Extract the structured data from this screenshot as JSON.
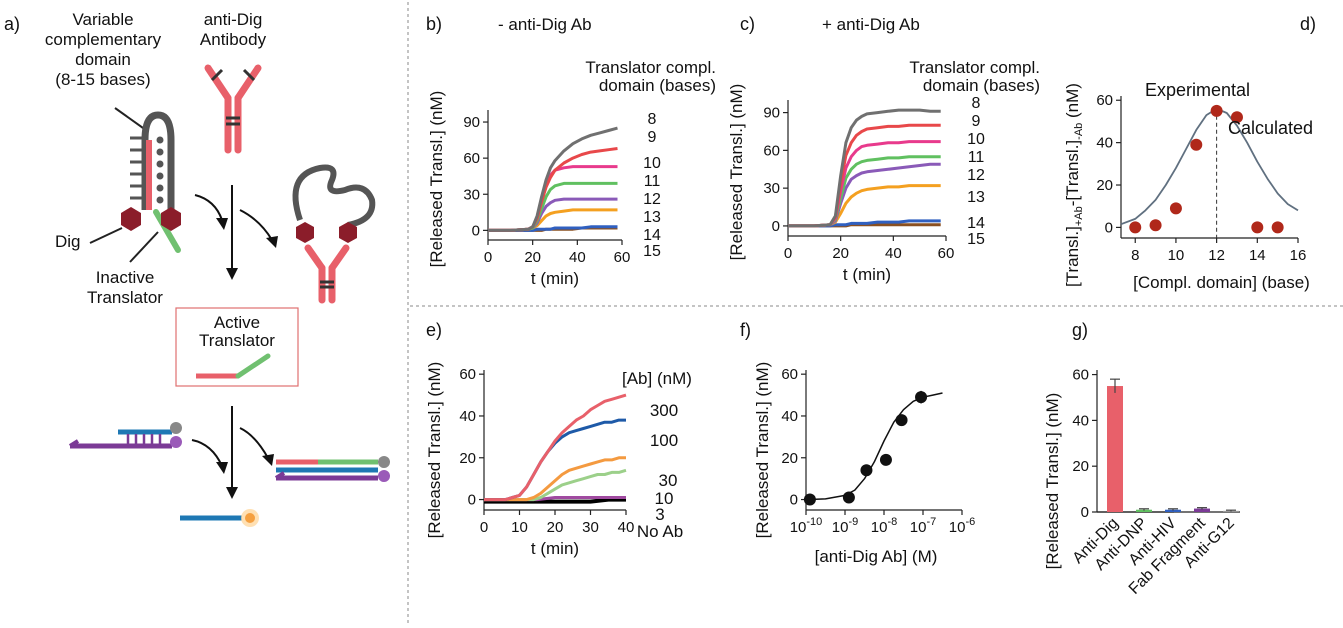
{
  "colors": {
    "axis": "#222222",
    "divider": "#888888",
    "red": "#e8606a",
    "green": "#70c070",
    "blue": "#1e78b4",
    "purple": "#7b3a96",
    "gray": "#555555",
    "maroon": "#a01c22",
    "calc": "#607080",
    "exp": "#b0281a"
  },
  "panel_a": {
    "letter": "a)",
    "variable_label": [
      "Variable",
      "complementary",
      "domain",
      "(8-15 bases)"
    ],
    "antibody_label": [
      "anti-Dig",
      "Antibody"
    ],
    "dig_label": "Dig",
    "inactive_label": [
      "Inactive",
      "Translator"
    ],
    "active_label": [
      "Active",
      "Translator"
    ]
  },
  "chart_data": [
    {
      "id": "b",
      "letter": "b)",
      "type": "line",
      "title": "- anti-Dig Ab",
      "legend_title": [
        "Translator compl.",
        "domain (bases)"
      ],
      "xlabel": "t (min)",
      "ylabel": "[Released Transl.] (nM)",
      "xlim": [
        0,
        60
      ],
      "ylim": [
        -8,
        100
      ],
      "xticks": [
        0,
        20,
        40,
        60
      ],
      "yticks": [
        0,
        30,
        60,
        90
      ],
      "series": [
        {
          "name": "8",
          "color": "#707070",
          "x": [
            0,
            10,
            18,
            20,
            22,
            24,
            26,
            28,
            30,
            34,
            38,
            42,
            46,
            50,
            54,
            58
          ],
          "y": [
            0,
            0,
            1,
            3,
            12,
            28,
            42,
            52,
            58,
            66,
            72,
            76,
            79,
            81,
            83,
            85
          ]
        },
        {
          "name": "9",
          "color": "#e8484a",
          "x": [
            0,
            10,
            18,
            20,
            22,
            24,
            26,
            28,
            30,
            34,
            38,
            42,
            46,
            50,
            54,
            58
          ],
          "y": [
            0,
            0,
            1,
            3,
            10,
            24,
            36,
            44,
            50,
            56,
            60,
            63,
            65,
            66,
            67,
            68
          ]
        },
        {
          "name": "10",
          "color": "#e83a8c",
          "x": [
            0,
            10,
            18,
            20,
            22,
            24,
            26,
            28,
            30,
            34,
            38,
            42,
            46,
            50,
            54,
            58
          ],
          "y": [
            0,
            0,
            1,
            3,
            10,
            24,
            38,
            46,
            50,
            52,
            53,
            53,
            53,
            53,
            53,
            53
          ]
        },
        {
          "name": "11",
          "color": "#60c060",
          "x": [
            0,
            10,
            18,
            20,
            22,
            24,
            26,
            28,
            30,
            34,
            38,
            42,
            46,
            50,
            54,
            58
          ],
          "y": [
            0,
            0,
            1,
            2,
            8,
            18,
            28,
            34,
            37,
            39,
            39,
            39,
            39,
            39,
            39,
            39
          ]
        },
        {
          "name": "12",
          "color": "#8a5ab8",
          "x": [
            0,
            10,
            18,
            20,
            22,
            24,
            26,
            28,
            30,
            34,
            38,
            42,
            46,
            50,
            54,
            58
          ],
          "y": [
            0,
            0,
            1,
            2,
            6,
            14,
            20,
            23,
            25,
            26,
            26,
            26,
            26,
            26,
            26,
            26
          ]
        },
        {
          "name": "13",
          "color": "#f4a020",
          "x": [
            0,
            10,
            18,
            20,
            22,
            24,
            26,
            28,
            30,
            34,
            38,
            42,
            46,
            50,
            54,
            58
          ],
          "y": [
            0,
            0,
            1,
            2,
            4,
            8,
            12,
            14,
            15,
            16,
            17,
            17,
            17,
            17,
            17,
            17
          ]
        },
        {
          "name": "14",
          "color": "#3060c0",
          "x": [
            0,
            10,
            18,
            20,
            22,
            24,
            26,
            28,
            30,
            34,
            38,
            42,
            46,
            50,
            54,
            58
          ],
          "y": [
            0,
            0,
            0,
            0,
            1,
            1,
            1,
            1,
            2,
            2,
            2,
            2,
            3,
            3,
            3,
            3
          ]
        },
        {
          "name": "15",
          "color": "#8a5020",
          "x": [
            0,
            10,
            18,
            20,
            22,
            24,
            26,
            28,
            30,
            34,
            38,
            42,
            46,
            50,
            54,
            58
          ],
          "y": [
            0,
            0,
            0,
            0,
            0,
            0,
            1,
            1,
            1,
            1,
            1,
            2,
            2,
            2,
            2,
            2
          ]
        }
      ]
    },
    {
      "id": "c",
      "letter": "c)",
      "type": "line",
      "title": "+ anti-Dig Ab",
      "legend_title": [
        "Translator compl.",
        "domain (bases)"
      ],
      "xlabel": "t (min)",
      "ylabel": "[Released Transl.] (nM)",
      "xlim": [
        0,
        60
      ],
      "ylim": [
        -8,
        100
      ],
      "xticks": [
        0,
        20,
        40,
        60
      ],
      "yticks": [
        0,
        30,
        60,
        90
      ],
      "series": [
        {
          "name": "8",
          "color": "#707070",
          "x": [
            0,
            10,
            16,
            18,
            20,
            22,
            24,
            26,
            28,
            30,
            34,
            38,
            42,
            46,
            50,
            54,
            58
          ],
          "y": [
            0,
            0,
            1,
            8,
            40,
            66,
            78,
            84,
            87,
            89,
            90,
            91,
            92,
            92,
            92,
            91,
            91
          ]
        },
        {
          "name": "9",
          "color": "#e8484a",
          "x": [
            0,
            10,
            16,
            18,
            20,
            22,
            24,
            26,
            28,
            30,
            34,
            38,
            42,
            46,
            50,
            54,
            58
          ],
          "y": [
            0,
            0,
            1,
            7,
            34,
            56,
            66,
            72,
            75,
            77,
            78,
            79,
            79,
            80,
            80,
            80,
            80
          ]
        },
        {
          "name": "10",
          "color": "#e83a8c",
          "x": [
            0,
            10,
            16,
            18,
            20,
            22,
            24,
            26,
            28,
            30,
            34,
            38,
            42,
            46,
            50,
            54,
            58
          ],
          "y": [
            0,
            0,
            1,
            6,
            28,
            46,
            55,
            60,
            63,
            64,
            65,
            66,
            66,
            67,
            67,
            67,
            67
          ]
        },
        {
          "name": "11",
          "color": "#60c060",
          "x": [
            0,
            10,
            16,
            18,
            20,
            22,
            24,
            26,
            28,
            30,
            34,
            38,
            42,
            46,
            50,
            54,
            58
          ],
          "y": [
            0,
            0,
            1,
            5,
            22,
            38,
            45,
            49,
            51,
            52,
            53,
            54,
            54,
            55,
            55,
            55,
            55
          ]
        },
        {
          "name": "12",
          "color": "#8a5ab8",
          "x": [
            0,
            10,
            16,
            18,
            20,
            22,
            24,
            26,
            28,
            30,
            34,
            38,
            42,
            46,
            50,
            54,
            58
          ],
          "y": [
            0,
            0,
            1,
            4,
            18,
            30,
            37,
            40,
            42,
            43,
            44,
            45,
            46,
            47,
            48,
            49,
            49
          ]
        },
        {
          "name": "13",
          "color": "#f4a020",
          "x": [
            0,
            10,
            16,
            18,
            20,
            22,
            24,
            26,
            28,
            30,
            34,
            38,
            42,
            46,
            50,
            54,
            58
          ],
          "y": [
            0,
            0,
            1,
            3,
            10,
            18,
            23,
            26,
            28,
            29,
            30,
            31,
            31,
            32,
            32,
            32,
            32
          ]
        },
        {
          "name": "14",
          "color": "#3060c0",
          "x": [
            0,
            10,
            16,
            18,
            20,
            22,
            24,
            26,
            28,
            30,
            34,
            38,
            42,
            46,
            50,
            54,
            58
          ],
          "y": [
            0,
            0,
            0,
            1,
            1,
            1,
            2,
            2,
            2,
            2,
            3,
            3,
            3,
            4,
            4,
            4,
            4
          ]
        },
        {
          "name": "15",
          "color": "#8a5020",
          "x": [
            0,
            10,
            16,
            18,
            20,
            22,
            24,
            26,
            28,
            30,
            34,
            38,
            42,
            46,
            50,
            54,
            58
          ],
          "y": [
            0,
            0,
            0,
            0,
            0,
            0,
            1,
            1,
            1,
            1,
            1,
            1,
            1,
            1,
            1,
            1,
            1
          ]
        }
      ]
    },
    {
      "id": "d",
      "letter": "d)",
      "type": "scatter",
      "xlabel": "[Compl. domain] (base)",
      "ylabel_parts": [
        "[Transl.]",
        "+Ab",
        "-[Transl.]",
        "-Ab",
        " (nM)"
      ],
      "xlim": [
        7.3,
        16
      ],
      "ylim": [
        -5,
        62
      ],
      "xticks": [
        8,
        10,
        12,
        14,
        16
      ],
      "yticks": [
        0,
        20,
        40,
        60
      ],
      "dashed_x": 12,
      "experimental": {
        "name": "Experimental",
        "color": "#b0281a",
        "x": [
          8,
          9,
          10,
          11,
          12,
          13,
          14,
          15
        ],
        "y": [
          0,
          1,
          9,
          39,
          55,
          52,
          0,
          0
        ]
      },
      "calculated": {
        "name": "Calculated",
        "color": "#607080",
        "x": [
          7.3,
          8,
          8.5,
          9,
          9.5,
          10,
          10.5,
          11,
          11.5,
          12,
          12.5,
          13,
          13.5,
          14,
          14.5,
          15,
          15.5,
          16
        ],
        "y": [
          1.5,
          4,
          8,
          13,
          20,
          28,
          37,
          46,
          53,
          56,
          54,
          48,
          40,
          31,
          23,
          16,
          11,
          8
        ]
      }
    },
    {
      "id": "e",
      "letter": "e)",
      "type": "line",
      "legend_title": "[Ab] (nM)",
      "xlabel": "t (min)",
      "ylabel": "[Released Transl.] (nM)",
      "xlim": [
        0,
        40
      ],
      "ylim": [
        -5,
        62
      ],
      "xticks": [
        0,
        10,
        20,
        30,
        40
      ],
      "yticks": [
        0,
        20,
        40,
        60
      ],
      "series": [
        {
          "name": "300",
          "color": "#e8606a",
          "x": [
            0,
            6,
            8,
            10,
            12,
            14,
            16,
            18,
            20,
            22,
            24,
            26,
            28,
            30,
            32,
            34,
            36,
            38,
            40
          ],
          "y": [
            0,
            0,
            1,
            2,
            6,
            12,
            18,
            23,
            28,
            32,
            35,
            38,
            40,
            43,
            45,
            47,
            48,
            49,
            50
          ]
        },
        {
          "name": "100",
          "color": "#1e5aa8",
          "x": [
            0,
            6,
            8,
            10,
            12,
            14,
            16,
            18,
            20,
            22,
            24,
            26,
            28,
            30,
            32,
            34,
            36,
            38,
            40
          ],
          "y": [
            0,
            0,
            1,
            2,
            6,
            12,
            18,
            23,
            27,
            30,
            32,
            33,
            34,
            35,
            36,
            37,
            37,
            38,
            38
          ]
        },
        {
          "name": "30",
          "color": "#f49a40",
          "x": [
            0,
            10,
            12,
            14,
            16,
            18,
            20,
            22,
            24,
            26,
            28,
            30,
            32,
            34,
            36,
            38,
            40
          ],
          "y": [
            0,
            0,
            0,
            1,
            3,
            6,
            9,
            12,
            14,
            15,
            16,
            17,
            18,
            19,
            19,
            20,
            20
          ]
        },
        {
          "name": "10",
          "color": "#9cd08a",
          "x": [
            0,
            10,
            14,
            16,
            18,
            20,
            22,
            24,
            26,
            28,
            30,
            32,
            34,
            36,
            38,
            40
          ],
          "y": [
            0,
            0,
            0,
            1,
            3,
            5,
            7,
            8,
            9,
            10,
            11,
            12,
            12,
            13,
            13,
            14
          ]
        },
        {
          "name": "3",
          "color": "#a04aa0",
          "x": [
            0,
            10,
            15,
            20,
            25,
            30,
            35,
            40
          ],
          "y": [
            0,
            0,
            0,
            1,
            1,
            1,
            1,
            1
          ]
        },
        {
          "name": "No Ab",
          "color": "#000000",
          "x": [
            0,
            5,
            10,
            15,
            20,
            25,
            30,
            35,
            40
          ],
          "y": [
            -1,
            -1,
            -1,
            -1,
            -1,
            -1,
            -1,
            0,
            0
          ]
        }
      ]
    },
    {
      "id": "f",
      "letter": "f)",
      "type": "scatter",
      "xlabel": "[anti-Dig Ab] (M)",
      "ylabel": "[Released Transl.] (nM)",
      "xscale": "log",
      "xlim_exp": [
        -10,
        -6
      ],
      "ylim": [
        -5,
        62
      ],
      "xtick_exps": [
        -10,
        -9,
        -8,
        -7,
        -6
      ],
      "yticks": [
        0,
        20,
        40,
        60
      ],
      "points": {
        "x_exp": [
          -9.9,
          -8.9,
          -8.45,
          -7.95,
          -7.55,
          -7.05
        ],
        "y": [
          0,
          1,
          14,
          19,
          38,
          49
        ],
        "err": [
          0,
          0,
          0,
          0,
          0,
          3
        ]
      },
      "fit": {
        "x_exp": [
          -10,
          -9.5,
          -9,
          -8.75,
          -8.5,
          -8.25,
          -8,
          -7.75,
          -7.5,
          -7.25,
          -7,
          -6.75,
          -6.5
        ],
        "y": [
          0,
          0.3,
          2,
          4.5,
          10,
          18,
          28,
          37,
          43,
          47,
          49,
          50,
          51
        ]
      }
    },
    {
      "id": "g",
      "letter": "g)",
      "type": "bar",
      "ylabel": "[Released Transl.] (nM)",
      "ylim": [
        0,
        62
      ],
      "yticks": [
        0,
        20,
        40,
        60
      ],
      "categories": [
        "Anti-Dig",
        "Anti-DNP",
        "Anti-HIV",
        "Fab Fragment",
        "Anti-G12"
      ],
      "values": [
        55,
        1,
        1,
        1.5,
        0.5
      ],
      "errors": [
        3,
        0.4,
        0.4,
        0.4,
        0.3
      ],
      "colors": [
        "#e8606a",
        "#60c060",
        "#3060c0",
        "#7b3a96",
        "#999999"
      ]
    }
  ]
}
